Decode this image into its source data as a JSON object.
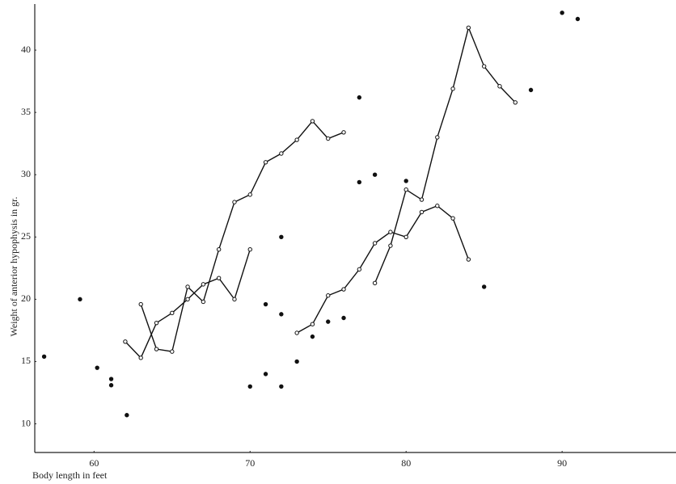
{
  "chart_data": {
    "type": "line",
    "ylabel": "Weight of anterior hypophysis in gr.",
    "xlabel": "Body length in feet",
    "xlim": [
      56.2,
      97.3
    ],
    "ylim": [
      7.7,
      43.7
    ],
    "xticks": [
      60,
      70,
      80,
      90
    ],
    "yticks": [
      10,
      15,
      20,
      25,
      30,
      35,
      40
    ],
    "series": [
      {
        "color": "#111",
        "line": true,
        "x": [
          62,
          63,
          64,
          65,
          66,
          67,
          68,
          69,
          70
        ],
        "values": [
          16.6,
          15.3,
          18.1,
          18.9,
          20,
          21.2,
          21.7,
          20,
          24
        ]
      },
      {
        "color": "#111",
        "line": true,
        "x": [
          63,
          64,
          65,
          66,
          67,
          68,
          69,
          70,
          71,
          72,
          73,
          74,
          75,
          76
        ],
        "values": [
          19.6,
          16,
          15.8,
          21,
          19.8,
          24,
          27.8,
          28.4,
          31,
          31.7,
          32.8,
          34.3,
          32.9,
          33.4
        ]
      },
      {
        "color": "#111",
        "line": true,
        "x": [
          73,
          74,
          75,
          76,
          77,
          78,
          79,
          80,
          81,
          82,
          83,
          84
        ],
        "values": [
          17.3,
          18,
          20.3,
          20.8,
          22.4,
          24.5,
          25.4,
          25,
          27,
          27.5,
          26.5,
          23.2
        ]
      },
      {
        "color": "#111",
        "line": true,
        "x": [
          78,
          79,
          80,
          81,
          82,
          83,
          84,
          85,
          86,
          87
        ],
        "values": [
          21.3,
          24.3,
          28.8,
          28,
          33,
          36.9,
          41.8,
          38.7,
          37.1,
          35.8
        ]
      },
      {
        "color": "#111",
        "line": false,
        "x": [
          56.8,
          59.1,
          60.2,
          61.1,
          61.1,
          62.1,
          70,
          71,
          71,
          72,
          72,
          72,
          73,
          74,
          75,
          76,
          77,
          77,
          78,
          80,
          85,
          88,
          90,
          91
        ],
        "values": [
          15.4,
          20,
          14.5,
          13.6,
          13.1,
          10.7,
          13,
          14,
          19.6,
          18.8,
          13,
          25,
          15,
          17,
          18.2,
          18.5,
          36.2,
          29.4,
          30,
          29.5,
          21,
          36.8,
          43,
          42.5
        ]
      }
    ]
  }
}
